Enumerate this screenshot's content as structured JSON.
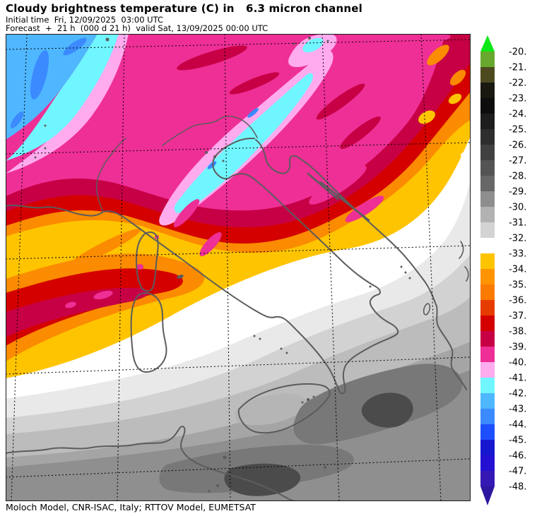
{
  "header": {
    "title": "Cloudy brightness temperature (C) in   6.3 micron channel",
    "initial_time_line": "Initial time  Fri, 12/09/2025  03:00 UTC",
    "forecast_line": "Forecast  +  21 h  (000 d 21 h)  valid Sat, 13/09/2025 00:00 UTC"
  },
  "caption": "Moloch Model, CNR-ISAC, Italy; RTTOV Model, EUMETSAT",
  "colorbar": {
    "unit": "C",
    "ticks": [
      "-20.",
      "-21.",
      "-22.",
      "-23.",
      "-24.",
      "-25.",
      "-26.",
      "-27.",
      "-28.",
      "-29.",
      "-30.",
      "-31.",
      "-32.",
      "-33.",
      "-34.",
      "-35.",
      "-36.",
      "-37.",
      "-38.",
      "-39.",
      "-40.",
      "-41.",
      "-42.",
      "-43.",
      "-44.",
      "-45.",
      "-46.",
      "-47.",
      "-48."
    ],
    "box_colors": [
      "#68a82e",
      "#4d4a20",
      "#191911",
      "#0d0d0d",
      "#1d1d1d",
      "#2e2e2e",
      "#414141",
      "#545454",
      "#676767",
      "#8e8e8e",
      "#b2b2b2",
      "#d3d3d3",
      "#ffffff",
      "#ffc400",
      "#ff9400",
      "#fb7a00",
      "#e63c00",
      "#d40000",
      "#c70045",
      "#ee2f96",
      "#ffabee",
      "#70f6ff",
      "#4fb7ff",
      "#3c8aff",
      "#1e4fff",
      "#1617cf",
      "#2310d2",
      "#3619b4"
    ],
    "arrow_top_color": "#0ce816",
    "arrow_bottom_color": "#2e17a0",
    "tick_color": "#000000"
  },
  "map": {
    "grid_color": "#000000",
    "coast_color": "#5c5c5c",
    "frame_color": "#1a1a1a"
  }
}
